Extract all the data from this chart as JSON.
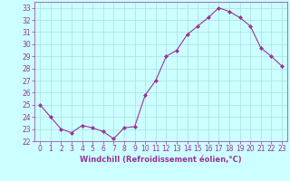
{
  "x": [
    0,
    1,
    2,
    3,
    4,
    5,
    6,
    7,
    8,
    9,
    10,
    11,
    12,
    13,
    14,
    15,
    16,
    17,
    18,
    19,
    20,
    21,
    22,
    23
  ],
  "y": [
    25.0,
    24.0,
    23.0,
    22.7,
    23.3,
    23.1,
    22.8,
    22.2,
    23.1,
    23.2,
    25.8,
    27.0,
    29.0,
    29.5,
    30.8,
    31.5,
    32.2,
    33.0,
    32.7,
    32.2,
    31.5,
    29.7,
    29.0,
    28.2
  ],
  "line_color": "#993399",
  "marker": "D",
  "marker_size": 2,
  "bg_color": "#ccffff",
  "grid_color": "#aadddd",
  "xlabel": "Windchill (Refroidissement éolien,°C)",
  "xlabel_color": "#993399",
  "tick_color": "#993399",
  "label_color": "#993399",
  "ylim": [
    22,
    33.5
  ],
  "xlim": [
    -0.5,
    23.5
  ],
  "yticks": [
    22,
    23,
    24,
    25,
    26,
    27,
    28,
    29,
    30,
    31,
    32,
    33
  ],
  "xticks": [
    0,
    1,
    2,
    3,
    4,
    5,
    6,
    7,
    8,
    9,
    10,
    11,
    12,
    13,
    14,
    15,
    16,
    17,
    18,
    19,
    20,
    21,
    22,
    23
  ],
  "spine_color": "#993399",
  "tick_labelsize": 5.5,
  "xlabel_fontsize": 6.0
}
